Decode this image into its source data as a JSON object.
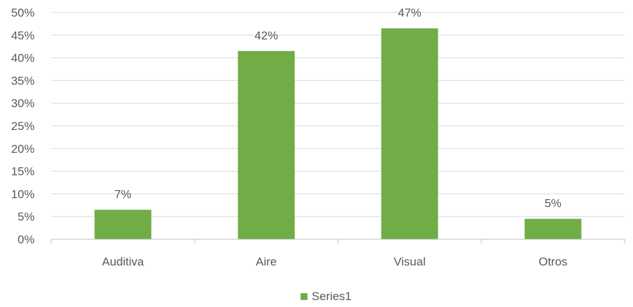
{
  "chart_data": {
    "type": "bar",
    "title": "",
    "xlabel": "",
    "ylabel": "",
    "categories": [
      "Auditiva",
      "Aire",
      "Visual",
      "Otros"
    ],
    "series": [
      {
        "name": "Series1",
        "values": [
          0.065,
          0.415,
          0.465,
          0.045
        ],
        "data_labels": [
          "7%",
          "42%",
          "47%",
          "5%"
        ],
        "color": "#70AD47"
      }
    ],
    "ylim": [
      0,
      0.5
    ],
    "yticks": [
      0,
      0.05,
      0.1,
      0.15,
      0.2,
      0.25,
      0.3,
      0.35,
      0.4,
      0.45,
      0.5
    ],
    "ytick_labels": [
      "0%",
      "5%",
      "10%",
      "15%",
      "20%",
      "25%",
      "30%",
      "35%",
      "40%",
      "45%",
      "50%"
    ],
    "grid": true,
    "legend": {
      "position": "bottom",
      "entries": [
        "Series1"
      ]
    },
    "colors": {
      "bar": "#70AD47",
      "grid": "#D9D9D9",
      "axis": "#BFBFBF",
      "text": "#595959"
    }
  }
}
